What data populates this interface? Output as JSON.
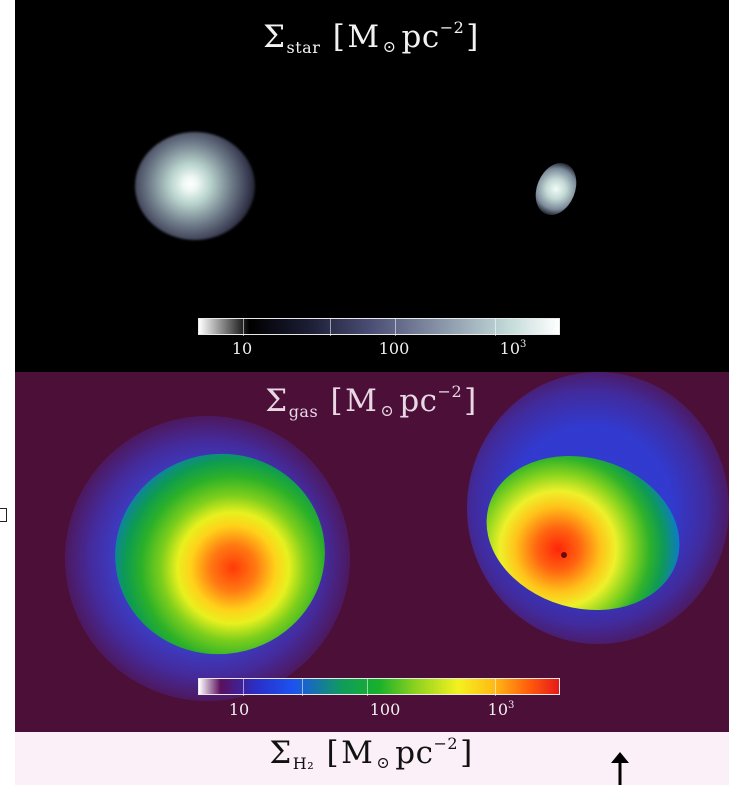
{
  "figure": {
    "panels": [
      {
        "id": "stellar-surface-density",
        "title_symbol": "Σ",
        "title_subscript": "star",
        "title_units": "M",
        "title_units_symbol": "⊙",
        "title_units_rest": "pc",
        "title_exponent": "−2",
        "colorbar": {
          "ticks": [
            "10",
            "100"
          ],
          "tick_power_base": "10",
          "tick_power_exp": "3"
        },
        "colormap": "black-grey-white",
        "colors": {
          "background": "#000000"
        }
      },
      {
        "id": "gas-surface-density",
        "title_symbol": "Σ",
        "title_subscript": "gas",
        "title_units": "M",
        "title_units_symbol": "⊙",
        "title_units_rest": "pc",
        "title_exponent": "−2",
        "colorbar": {
          "ticks": [
            "10",
            "100"
          ],
          "tick_power_base": "10",
          "tick_power_exp": "3"
        },
        "colormap": "blue-green-yellow-red",
        "colors": {
          "background": "#4c0f38"
        }
      },
      {
        "id": "h2-surface-density",
        "title_symbol": "Σ",
        "title_subscript": "H₂",
        "title_units": "M",
        "title_units_symbol": "⊙",
        "title_units_rest": "pc",
        "title_exponent": "−2",
        "colors": {
          "background": "#fbf0f8"
        }
      }
    ],
    "annotation": {
      "icon": "up-arrow-icon"
    },
    "margin_marker_icon": "bracket-mark"
  }
}
